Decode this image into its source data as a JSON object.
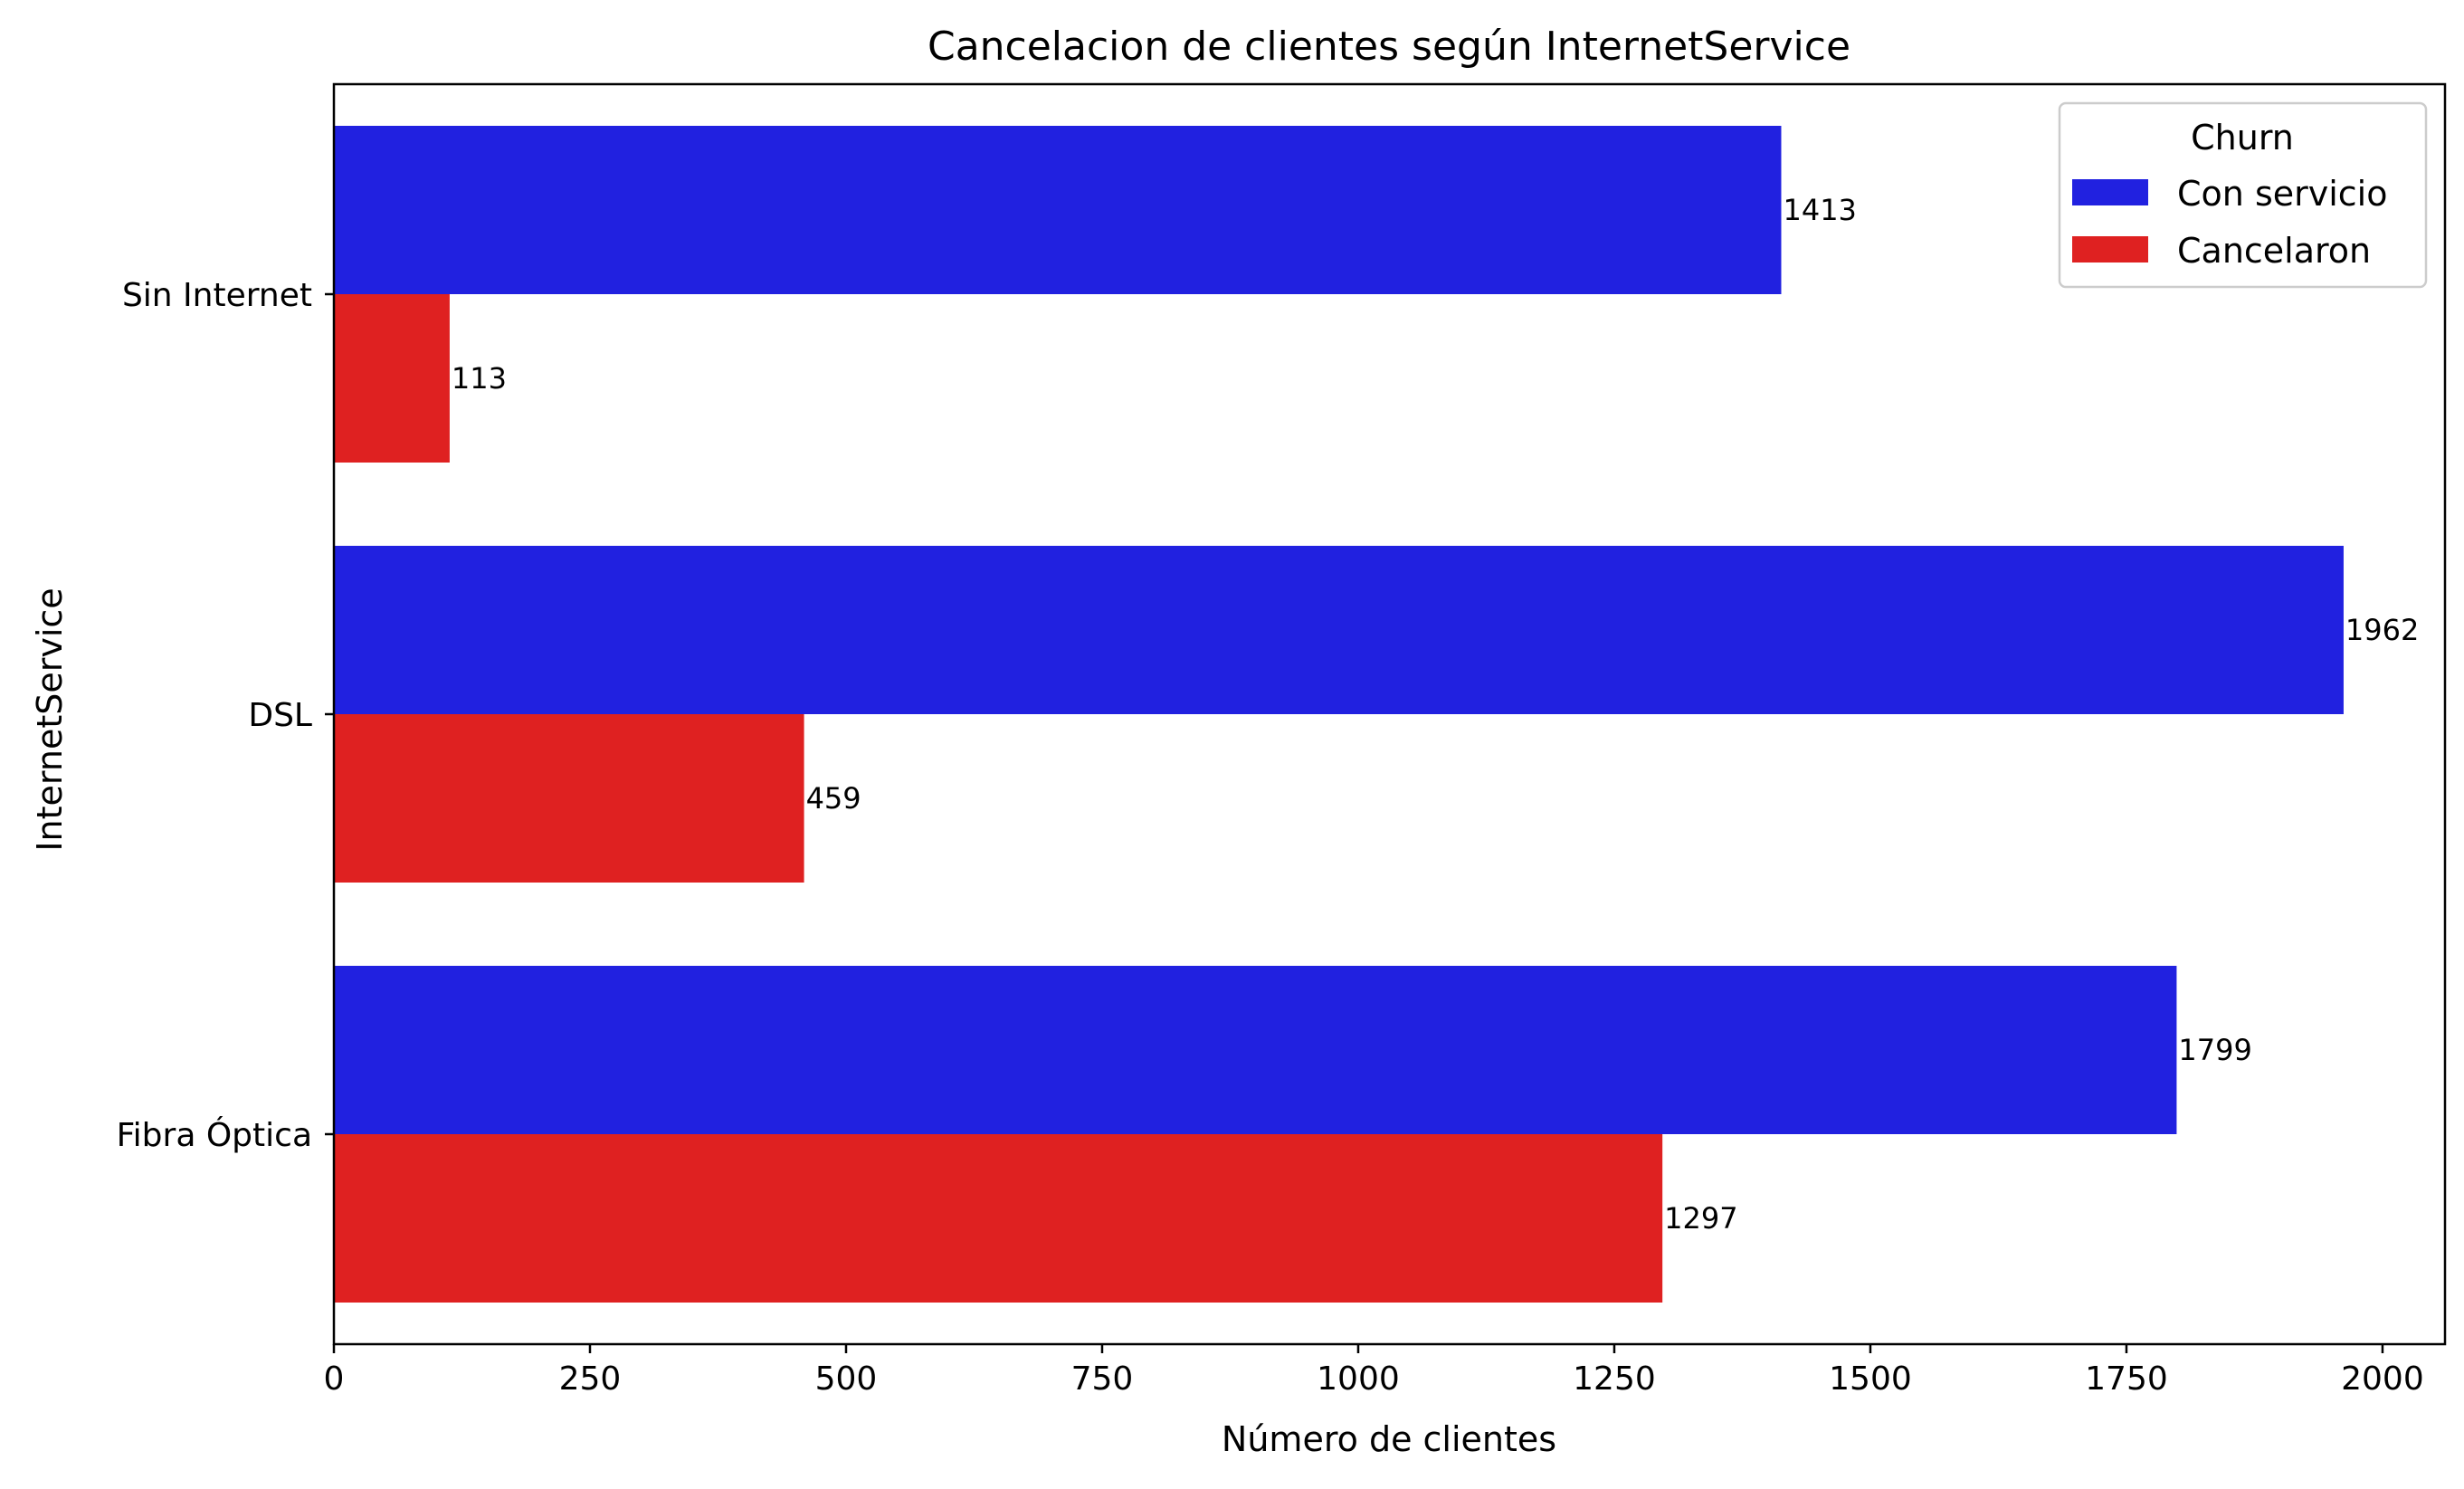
{
  "chart_data": {
    "type": "bar",
    "orientation": "horizontal",
    "title": "Cancelacion de clientes según InternetService",
    "xlabel": "Número de clientes",
    "ylabel": "InternetService",
    "categories": [
      "Sin Internet",
      "DSL",
      "Fibra Óptica"
    ],
    "series": [
      {
        "name": "Con servicio",
        "color": "#2121e0",
        "values": [
          1413,
          1962,
          1799
        ]
      },
      {
        "name": "Cancelaron",
        "color": "#df2121",
        "values": [
          113,
          459,
          1297
        ]
      }
    ],
    "xlim": [
      0,
      2061
    ],
    "xticks": [
      0,
      250,
      500,
      750,
      1000,
      1250,
      1500,
      1750,
      2000
    ],
    "xtick_labels": [
      "0",
      "250",
      "500",
      "750",
      "1000",
      "1250",
      "1500",
      "1750",
      "2000"
    ],
    "grid": false,
    "legend": {
      "title": "Churn",
      "placement": "top-right"
    }
  }
}
